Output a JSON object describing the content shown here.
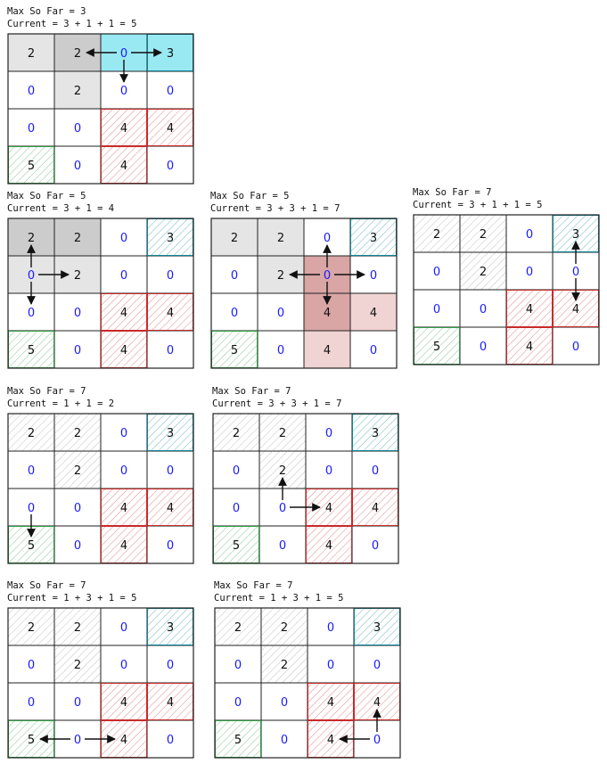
{
  "colors": {
    "blue": "#1a1aff",
    "black": "#111111",
    "green": "#2f9e44",
    "red": "#c92a2a",
    "cyan": "#0c8599",
    "cyan_fill": "#99e9f2",
    "gray_dark": "#cccccc",
    "gray_light": "#e5e5e5",
    "red_dark": "#d9a5a5",
    "red_light": "#f0d3d3"
  },
  "grid": [
    [
      "2",
      "2",
      "0",
      "3"
    ],
    [
      "0",
      "2",
      "0",
      "0"
    ],
    [
      "0",
      "0",
      "4",
      "4"
    ],
    [
      "5",
      "0",
      "4",
      "0"
    ]
  ],
  "panels": [
    {
      "max_label": "Max So Far = 3",
      "current_label": "Current = 3 + 1 + 1 = 5",
      "cells": [
        {
          "r": 0,
          "c": 0,
          "fill": "gray_light"
        },
        {
          "r": 0,
          "c": 1,
          "fill": "gray_dark"
        },
        {
          "r": 0,
          "c": 2,
          "fill": "cyan_fill"
        },
        {
          "r": 0,
          "c": 3,
          "fill": "cyan_fill",
          "border": "cyan"
        },
        {
          "r": 1,
          "c": 1,
          "fill": "gray_light"
        },
        {
          "r": 2,
          "c": 2,
          "hatch": "red"
        },
        {
          "r": 2,
          "c": 3,
          "hatch": "red"
        },
        {
          "r": 3,
          "c": 0,
          "hatch": "green"
        },
        {
          "r": 3,
          "c": 2,
          "hatch": "red"
        }
      ],
      "arrows": [
        {
          "from": [
            0,
            2
          ],
          "to": [
            0,
            1
          ]
        },
        {
          "from": [
            0,
            2
          ],
          "to": [
            0,
            3
          ]
        },
        {
          "from": [
            0,
            2
          ],
          "to": [
            1,
            2
          ]
        }
      ]
    },
    {
      "max_label": "Max So Far = 5",
      "current_label": "Current = 3 + 1 = 4",
      "cells": [
        {
          "r": 0,
          "c": 0,
          "fill": "gray_dark"
        },
        {
          "r": 0,
          "c": 1,
          "fill": "gray_dark"
        },
        {
          "r": 0,
          "c": 3,
          "hatch": "cyan",
          "border": "cyan"
        },
        {
          "r": 1,
          "c": 0,
          "fill": "gray_light"
        },
        {
          "r": 1,
          "c": 1,
          "fill": "gray_light"
        },
        {
          "r": 2,
          "c": 2,
          "hatch": "red"
        },
        {
          "r": 2,
          "c": 3,
          "hatch": "red"
        },
        {
          "r": 3,
          "c": 0,
          "hatch": "green"
        },
        {
          "r": 3,
          "c": 2,
          "hatch": "red"
        }
      ],
      "arrows": [
        {
          "from": [
            1,
            0
          ],
          "to": [
            0,
            0
          ]
        },
        {
          "from": [
            1,
            0
          ],
          "to": [
            1,
            1
          ]
        },
        {
          "from": [
            1,
            0
          ],
          "to": [
            2,
            0
          ]
        }
      ]
    },
    {
      "max_label": "Max So Far = 5",
      "current_label": "Current = 3 + 3 + 1 = 7",
      "cells": [
        {
          "r": 0,
          "c": 0,
          "fill": "gray_light"
        },
        {
          "r": 0,
          "c": 1,
          "fill": "gray_light"
        },
        {
          "r": 0,
          "c": 3,
          "hatch": "cyan",
          "border": "cyan"
        },
        {
          "r": 1,
          "c": 1,
          "fill": "gray_light"
        },
        {
          "r": 1,
          "c": 2,
          "fill": "red_dark"
        },
        {
          "r": 2,
          "c": 2,
          "fill": "red_dark"
        },
        {
          "r": 2,
          "c": 3,
          "fill": "red_light"
        },
        {
          "r": 3,
          "c": 0,
          "hatch": "green"
        },
        {
          "r": 3,
          "c": 2,
          "fill": "red_light"
        }
      ],
      "arrows": [
        {
          "from": [
            1,
            2
          ],
          "to": [
            0,
            2
          ]
        },
        {
          "from": [
            1,
            2
          ],
          "to": [
            1,
            1
          ]
        },
        {
          "from": [
            1,
            2
          ],
          "to": [
            1,
            3
          ]
        },
        {
          "from": [
            1,
            2
          ],
          "to": [
            2,
            2
          ]
        }
      ]
    },
    {
      "max_label": "Max So Far = 7",
      "current_label": "Current = 3 + 1 + 1 = 5",
      "cells": [
        {
          "r": 0,
          "c": 0,
          "hatch": "gray"
        },
        {
          "r": 0,
          "c": 1,
          "hatch": "gray"
        },
        {
          "r": 0,
          "c": 3,
          "hatch": "cyan",
          "border": "cyan"
        },
        {
          "r": 1,
          "c": 1,
          "hatch": "gray"
        },
        {
          "r": 2,
          "c": 2,
          "hatch": "red"
        },
        {
          "r": 2,
          "c": 3,
          "hatch": "red"
        },
        {
          "r": 3,
          "c": 0,
          "hatch": "green"
        },
        {
          "r": 3,
          "c": 2,
          "hatch": "red"
        }
      ],
      "arrows": [
        {
          "from": [
            1,
            3
          ],
          "to": [
            0,
            3
          ]
        },
        {
          "from": [
            1,
            3
          ],
          "to": [
            2,
            3
          ]
        }
      ]
    },
    {
      "max_label": "Max So Far = 7",
      "current_label": "Current = 1 + 1 = 2",
      "cells": [
        {
          "r": 0,
          "c": 0,
          "hatch": "gray"
        },
        {
          "r": 0,
          "c": 1,
          "hatch": "gray"
        },
        {
          "r": 0,
          "c": 3,
          "hatch": "cyan",
          "border": "cyan"
        },
        {
          "r": 1,
          "c": 1,
          "hatch": "gray"
        },
        {
          "r": 2,
          "c": 2,
          "hatch": "red"
        },
        {
          "r": 2,
          "c": 3,
          "hatch": "red"
        },
        {
          "r": 3,
          "c": 0,
          "hatch": "green"
        },
        {
          "r": 3,
          "c": 2,
          "hatch": "red"
        }
      ],
      "arrows": [
        {
          "from": [
            2,
            0
          ],
          "to": [
            3,
            0
          ]
        }
      ]
    },
    {
      "max_label": "Max So Far = 7",
      "current_label": "Current = 3 + 3 + 1 = 7",
      "cells": [
        {
          "r": 0,
          "c": 0,
          "hatch": "gray"
        },
        {
          "r": 0,
          "c": 1,
          "hatch": "gray"
        },
        {
          "r": 0,
          "c": 3,
          "hatch": "cyan",
          "border": "cyan"
        },
        {
          "r": 1,
          "c": 1,
          "hatch": "gray"
        },
        {
          "r": 2,
          "c": 2,
          "hatch": "red"
        },
        {
          "r": 2,
          "c": 3,
          "hatch": "red"
        },
        {
          "r": 3,
          "c": 0,
          "hatch": "green"
        },
        {
          "r": 3,
          "c": 2,
          "hatch": "red"
        }
      ],
      "arrows": [
        {
          "from": [
            2,
            1
          ],
          "to": [
            1,
            1
          ]
        },
        {
          "from": [
            2,
            1
          ],
          "to": [
            2,
            2
          ]
        }
      ]
    },
    {
      "max_label": "Max So Far = 7",
      "current_label": "Current = 1 + 3 + 1 = 5",
      "cells": [
        {
          "r": 0,
          "c": 0,
          "hatch": "gray"
        },
        {
          "r": 0,
          "c": 1,
          "hatch": "gray"
        },
        {
          "r": 0,
          "c": 3,
          "hatch": "cyan",
          "border": "cyan"
        },
        {
          "r": 1,
          "c": 1,
          "hatch": "gray"
        },
        {
          "r": 2,
          "c": 2,
          "hatch": "red"
        },
        {
          "r": 2,
          "c": 3,
          "hatch": "red"
        },
        {
          "r": 3,
          "c": 0,
          "hatch": "green"
        },
        {
          "r": 3,
          "c": 2,
          "hatch": "red"
        }
      ],
      "arrows": [
        {
          "from": [
            3,
            1
          ],
          "to": [
            3,
            0
          ]
        },
        {
          "from": [
            3,
            1
          ],
          "to": [
            3,
            2
          ]
        }
      ]
    },
    {
      "max_label": "Max So Far = 7",
      "current_label": "Current = 1 + 3 + 1 = 5",
      "cells": [
        {
          "r": 0,
          "c": 0,
          "hatch": "gray"
        },
        {
          "r": 0,
          "c": 1,
          "hatch": "gray"
        },
        {
          "r": 0,
          "c": 3,
          "hatch": "cyan",
          "border": "cyan"
        },
        {
          "r": 1,
          "c": 1,
          "hatch": "gray"
        },
        {
          "r": 2,
          "c": 2,
          "hatch": "red"
        },
        {
          "r": 2,
          "c": 3,
          "hatch": "red"
        },
        {
          "r": 3,
          "c": 0,
          "hatch": "green"
        },
        {
          "r": 3,
          "c": 2,
          "hatch": "red"
        }
      ],
      "arrows": [
        {
          "from": [
            3,
            3
          ],
          "to": [
            2,
            3
          ]
        },
        {
          "from": [
            3,
            3
          ],
          "to": [
            3,
            2
          ]
        }
      ]
    }
  ]
}
